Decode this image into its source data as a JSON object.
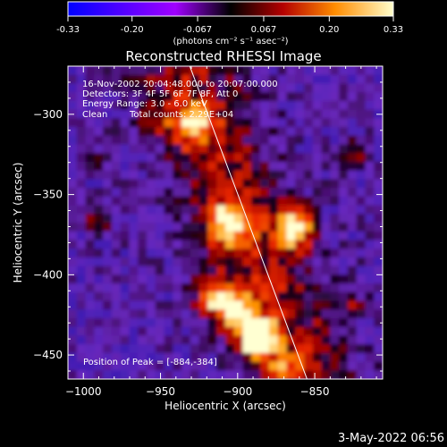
{
  "colorbar": {
    "ticks": [
      "-0.33",
      "-0.20",
      "-0.067",
      "0.067",
      "0.20",
      "0.33"
    ],
    "tick_values": [
      -0.33,
      -0.2,
      -0.067,
      0.067,
      0.2,
      0.33
    ],
    "range": [
      -0.33,
      0.33
    ],
    "units": "(photons cm⁻² s⁻¹ asec⁻²)"
  },
  "chart_data": {
    "type": "heatmap",
    "title": "Reconstructed RHESSI Image",
    "xlabel": "Heliocentric X (arcsec)",
    "ylabel": "Heliocentric Y (arcsec)",
    "xlim": [
      -1010,
      -806
    ],
    "ylim": [
      -465,
      -270
    ],
    "x_ticks": [
      -1000,
      -950,
      -900,
      -850
    ],
    "x_tick_labels": [
      "−1000",
      "−950",
      "−900",
      "−850"
    ],
    "y_ticks": [
      -300,
      -350,
      -400,
      -450
    ],
    "y_tick_labels": [
      "−300",
      "−350",
      "−400",
      "−450"
    ],
    "peak": {
      "x": -884,
      "y": -384
    },
    "limb_line": [
      [
        -931,
        -270
      ],
      [
        -855,
        -465
      ]
    ],
    "annotations": {
      "time_range": "16-Nov-2002 20:04:48.000 to 20:07:00.000",
      "detectors": "Detectors: 3F 4F 5F 6F 7F 8F, Att 0",
      "energy": "Energy Range: 3.0 - 6.0 keV",
      "method": "Clean",
      "counts": "Total counts: 2.29E+04",
      "peak_label": "Position of Peak = [-884,-384]"
    }
  },
  "footer": {
    "date": "3-May-2022 06:56"
  }
}
